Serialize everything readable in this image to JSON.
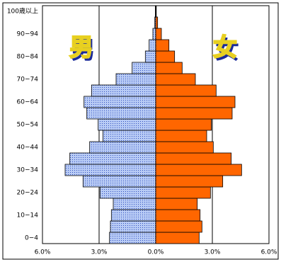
{
  "chart_data": {
    "type": "pyramid",
    "categories": [
      "0−4",
      null,
      "10−14",
      null,
      "20−24",
      null,
      "30−34",
      null,
      "40−44",
      null,
      "50−54",
      null,
      "60−64",
      null,
      "70−74",
      null,
      "80−84",
      null,
      "90−94",
      null,
      "100歳以上"
    ],
    "series": [
      {
        "name": "男",
        "side": "left",
        "color": "#a9bff2",
        "values": [
          2.45,
          2.4,
          2.35,
          2.25,
          2.95,
          3.85,
          4.8,
          4.55,
          3.5,
          2.8,
          3.05,
          3.65,
          3.8,
          3.4,
          2.1,
          1.25,
          0.55,
          0.35,
          0.15,
          0.05,
          0.02
        ]
      },
      {
        "name": "女",
        "side": "right",
        "color": "#ff6600",
        "values": [
          2.3,
          2.45,
          2.35,
          2.2,
          2.9,
          3.55,
          4.55,
          4.0,
          3.05,
          2.7,
          2.95,
          4.05,
          4.2,
          3.2,
          2.1,
          1.4,
          1.0,
          0.7,
          0.3,
          0.1,
          0.03
        ]
      }
    ],
    "xlim": [
      0,
      6
    ],
    "xticks": [
      {
        "value": 0,
        "label": "0.0%"
      },
      {
        "value": 3,
        "label": "3.0%"
      },
      {
        "value": 6,
        "label": "6.0%"
      }
    ],
    "grid": true
  }
}
